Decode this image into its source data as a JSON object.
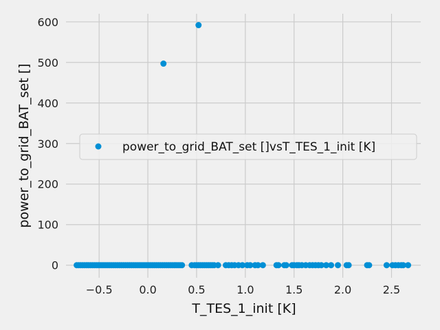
{
  "chart_data": {
    "type": "scatter",
    "title": "",
    "xlabel": "T_TES_1_init [K]",
    "ylabel": "power_to_grid_BAT_set []",
    "xlim": [
      -0.84,
      2.8
    ],
    "ylim": [
      -31,
      620
    ],
    "xticks": [
      -0.5,
      0.0,
      0.5,
      1.0,
      1.5,
      2.0,
      2.5
    ],
    "xtick_labels": [
      "−0.5",
      "0.0",
      "0.5",
      "1.0",
      "1.5",
      "2.0",
      "2.5"
    ],
    "yticks": [
      0,
      100,
      200,
      300,
      400,
      500,
      600
    ],
    "ytick_labels": [
      "0",
      "100",
      "200",
      "300",
      "400",
      "500",
      "600"
    ],
    "grid": true,
    "legend_position": "center-right",
    "series": [
      {
        "name": "power_to_grid_BAT_set []vsT_TES_1_init [K]",
        "color": "#008fd5",
        "points": [
          [
            -0.73,
            0
          ],
          [
            -0.71,
            0
          ],
          [
            -0.69,
            0
          ],
          [
            -0.67,
            0
          ],
          [
            -0.65,
            0
          ],
          [
            -0.63,
            0
          ],
          [
            -0.61,
            0
          ],
          [
            -0.59,
            0
          ],
          [
            -0.57,
            0
          ],
          [
            -0.55,
            0
          ],
          [
            -0.53,
            0
          ],
          [
            -0.51,
            0
          ],
          [
            -0.49,
            0
          ],
          [
            -0.47,
            0
          ],
          [
            -0.45,
            0
          ],
          [
            -0.43,
            0
          ],
          [
            -0.41,
            0
          ],
          [
            -0.39,
            0
          ],
          [
            -0.37,
            0
          ],
          [
            -0.35,
            0
          ],
          [
            -0.33,
            0
          ],
          [
            -0.31,
            0
          ],
          [
            -0.29,
            0
          ],
          [
            -0.27,
            0
          ],
          [
            -0.25,
            0
          ],
          [
            -0.23,
            0
          ],
          [
            -0.21,
            0
          ],
          [
            -0.19,
            0
          ],
          [
            -0.17,
            0
          ],
          [
            -0.15,
            0
          ],
          [
            -0.13,
            0
          ],
          [
            -0.11,
            0
          ],
          [
            -0.09,
            0
          ],
          [
            -0.07,
            0
          ],
          [
            -0.05,
            0
          ],
          [
            -0.03,
            0
          ],
          [
            -0.01,
            0
          ],
          [
            0.01,
            0
          ],
          [
            0.03,
            0
          ],
          [
            0.05,
            0
          ],
          [
            0.07,
            0
          ],
          [
            0.09,
            0
          ],
          [
            0.11,
            0
          ],
          [
            0.13,
            0
          ],
          [
            0.15,
            0
          ],
          [
            0.17,
            0
          ],
          [
            0.19,
            0
          ],
          [
            0.21,
            0
          ],
          [
            0.23,
            0
          ],
          [
            0.25,
            0
          ],
          [
            0.27,
            0
          ],
          [
            0.29,
            0
          ],
          [
            0.31,
            0
          ],
          [
            0.33,
            0
          ],
          [
            0.35,
            0
          ],
          [
            0.45,
            0
          ],
          [
            0.48,
            0
          ],
          [
            0.5,
            0
          ],
          [
            0.52,
            0
          ],
          [
            0.54,
            0
          ],
          [
            0.56,
            0
          ],
          [
            0.58,
            0
          ],
          [
            0.6,
            0
          ],
          [
            0.62,
            0
          ],
          [
            0.64,
            0
          ],
          [
            0.66,
            0
          ],
          [
            0.68,
            0
          ],
          [
            0.72,
            0
          ],
          [
            0.8,
            0
          ],
          [
            0.83,
            0
          ],
          [
            0.86,
            0
          ],
          [
            0.89,
            0
          ],
          [
            0.93,
            0
          ],
          [
            0.97,
            0
          ],
          [
            1.02,
            0
          ],
          [
            1.05,
            0
          ],
          [
            1.1,
            0
          ],
          [
            1.13,
            0
          ],
          [
            1.18,
            0
          ],
          [
            1.32,
            0
          ],
          [
            1.34,
            0
          ],
          [
            1.4,
            0
          ],
          [
            1.42,
            0
          ],
          [
            1.48,
            0
          ],
          [
            1.5,
            0
          ],
          [
            1.53,
            0
          ],
          [
            1.55,
            0
          ],
          [
            1.58,
            0
          ],
          [
            1.62,
            0
          ],
          [
            1.66,
            0
          ],
          [
            1.69,
            0
          ],
          [
            1.72,
            0
          ],
          [
            1.75,
            0
          ],
          [
            1.78,
            0
          ],
          [
            1.83,
            0
          ],
          [
            1.88,
            0
          ],
          [
            1.95,
            0
          ],
          [
            2.04,
            0
          ],
          [
            2.06,
            0
          ],
          [
            2.25,
            0
          ],
          [
            2.27,
            0
          ],
          [
            2.45,
            0
          ],
          [
            2.51,
            0
          ],
          [
            2.54,
            0
          ],
          [
            2.57,
            0
          ],
          [
            2.6,
            0
          ],
          [
            2.62,
            0
          ],
          [
            2.67,
            0
          ],
          [
            0.16,
            497
          ],
          [
            0.52,
            592
          ]
        ]
      }
    ]
  }
}
